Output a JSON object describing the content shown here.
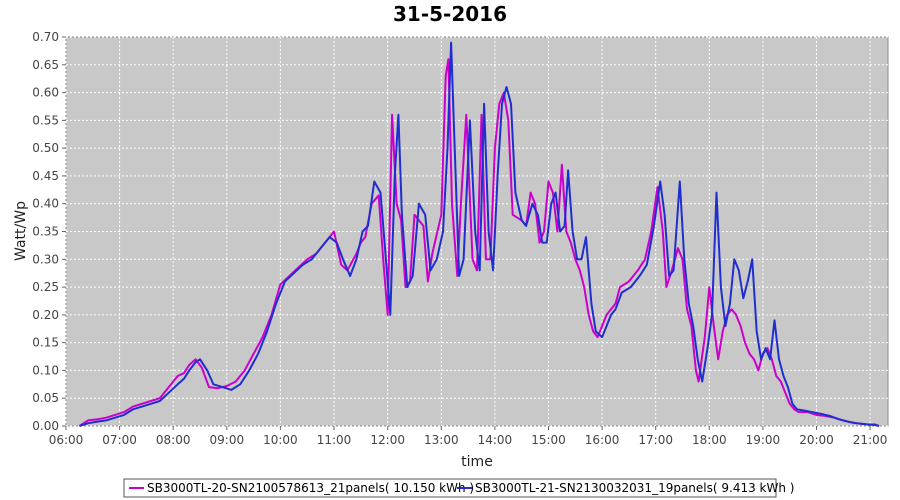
{
  "chart_data": {
    "type": "line",
    "title": "31-5-2016",
    "xlabel": "time",
    "ylabel": "Watt/Wp",
    "xlim": [
      "06:00",
      "21:20"
    ],
    "ylim": [
      0,
      0.7
    ],
    "x_ticks": [
      "06:00",
      "07:00",
      "08:00",
      "09:00",
      "10:00",
      "11:00",
      "12:00",
      "13:00",
      "14:00",
      "15:00",
      "16:00",
      "17:00",
      "18:00",
      "19:00",
      "20:00",
      "21:00"
    ],
    "y_ticks": [
      "0.00",
      "0.05",
      "0.10",
      "0.15",
      "0.20",
      "0.25",
      "0.30",
      "0.35",
      "0.40",
      "0.45",
      "0.50",
      "0.55",
      "0.60",
      "0.65",
      "0.70"
    ],
    "grid": true,
    "background": "#c8c8c8",
    "legend_position": "bottom",
    "series": [
      {
        "name": "SB3000TL-20-SN2100578613_21panels( 10.150 kWh )",
        "color": "#cc00cc",
        "points": [
          [
            "06:15",
            0.0
          ],
          [
            "06:25",
            0.01
          ],
          [
            "06:35",
            0.012
          ],
          [
            "06:45",
            0.015
          ],
          [
            "06:55",
            0.02
          ],
          [
            "07:05",
            0.025
          ],
          [
            "07:15",
            0.035
          ],
          [
            "07:25",
            0.04
          ],
          [
            "07:35",
            0.045
          ],
          [
            "07:45",
            0.05
          ],
          [
            "07:55",
            0.07
          ],
          [
            "08:05",
            0.09
          ],
          [
            "08:12",
            0.095
          ],
          [
            "08:18",
            0.11
          ],
          [
            "08:25",
            0.12
          ],
          [
            "08:32",
            0.105
          ],
          [
            "08:40",
            0.07
          ],
          [
            "08:50",
            0.068
          ],
          [
            "09:00",
            0.072
          ],
          [
            "09:10",
            0.08
          ],
          [
            "09:20",
            0.1
          ],
          [
            "09:30",
            0.13
          ],
          [
            "09:40",
            0.16
          ],
          [
            "09:50",
            0.2
          ],
          [
            "10:00",
            0.255
          ],
          [
            "10:10",
            0.27
          ],
          [
            "10:20",
            0.285
          ],
          [
            "10:30",
            0.3
          ],
          [
            "10:40",
            0.31
          ],
          [
            "10:50",
            0.33
          ],
          [
            "11:00",
            0.35
          ],
          [
            "11:08",
            0.29
          ],
          [
            "11:15",
            0.28
          ],
          [
            "11:25",
            0.31
          ],
          [
            "11:30",
            0.33
          ],
          [
            "11:35",
            0.34
          ],
          [
            "11:42",
            0.4
          ],
          [
            "11:50",
            0.415
          ],
          [
            "11:55",
            0.3
          ],
          [
            "12:00",
            0.2
          ],
          [
            "12:05",
            0.56
          ],
          [
            "12:10",
            0.4
          ],
          [
            "12:15",
            0.37
          ],
          [
            "12:20",
            0.25
          ],
          [
            "12:25",
            0.26
          ],
          [
            "12:30",
            0.38
          ],
          [
            "12:40",
            0.36
          ],
          [
            "12:45",
            0.26
          ],
          [
            "12:50",
            0.31
          ],
          [
            "13:00",
            0.38
          ],
          [
            "13:05",
            0.63
          ],
          [
            "13:08",
            0.66
          ],
          [
            "13:12",
            0.4
          ],
          [
            "13:18",
            0.27
          ],
          [
            "13:22",
            0.4
          ],
          [
            "13:28",
            0.56
          ],
          [
            "13:35",
            0.3
          ],
          [
            "13:40",
            0.28
          ],
          [
            "13:45",
            0.56
          ],
          [
            "13:50",
            0.3
          ],
          [
            "13:55",
            0.3
          ],
          [
            "14:00",
            0.5
          ],
          [
            "14:05",
            0.58
          ],
          [
            "14:10",
            0.6
          ],
          [
            "14:15",
            0.55
          ],
          [
            "14:20",
            0.38
          ],
          [
            "14:30",
            0.37
          ],
          [
            "14:35",
            0.36
          ],
          [
            "14:40",
            0.42
          ],
          [
            "14:45",
            0.4
          ],
          [
            "14:50",
            0.33
          ],
          [
            "14:55",
            0.35
          ],
          [
            "15:00",
            0.44
          ],
          [
            "15:05",
            0.42
          ],
          [
            "15:10",
            0.35
          ],
          [
            "15:15",
            0.47
          ],
          [
            "15:20",
            0.35
          ],
          [
            "15:25",
            0.33
          ],
          [
            "15:30",
            0.3
          ],
          [
            "15:35",
            0.28
          ],
          [
            "15:40",
            0.25
          ],
          [
            "15:45",
            0.2
          ],
          [
            "15:50",
            0.17
          ],
          [
            "15:55",
            0.16
          ],
          [
            "16:00",
            0.18
          ],
          [
            "16:05",
            0.2
          ],
          [
            "16:10",
            0.21
          ],
          [
            "16:15",
            0.22
          ],
          [
            "16:20",
            0.25
          ],
          [
            "16:30",
            0.26
          ],
          [
            "16:40",
            0.28
          ],
          [
            "16:48",
            0.3
          ],
          [
            "16:55",
            0.35
          ],
          [
            "17:02",
            0.43
          ],
          [
            "17:08",
            0.35
          ],
          [
            "17:12",
            0.25
          ],
          [
            "17:18",
            0.28
          ],
          [
            "17:25",
            0.32
          ],
          [
            "17:30",
            0.3
          ],
          [
            "17:35",
            0.21
          ],
          [
            "17:40",
            0.18
          ],
          [
            "17:45",
            0.1
          ],
          [
            "17:48",
            0.08
          ],
          [
            "17:55",
            0.16
          ],
          [
            "18:00",
            0.25
          ],
          [
            "18:05",
            0.18
          ],
          [
            "18:10",
            0.12
          ],
          [
            "18:15",
            0.17
          ],
          [
            "18:20",
            0.2
          ],
          [
            "18:25",
            0.21
          ],
          [
            "18:30",
            0.2
          ],
          [
            "18:35",
            0.18
          ],
          [
            "18:40",
            0.15
          ],
          [
            "18:45",
            0.13
          ],
          [
            "18:50",
            0.12
          ],
          [
            "18:55",
            0.1
          ],
          [
            "19:00",
            0.13
          ],
          [
            "19:05",
            0.14
          ],
          [
            "19:10",
            0.12
          ],
          [
            "19:15",
            0.09
          ],
          [
            "19:20",
            0.08
          ],
          [
            "19:25",
            0.06
          ],
          [
            "19:30",
            0.04
          ],
          [
            "19:35",
            0.03
          ],
          [
            "19:40",
            0.025
          ],
          [
            "19:50",
            0.025
          ],
          [
            "20:00",
            0.02
          ],
          [
            "20:10",
            0.018
          ],
          [
            "20:20",
            0.015
          ],
          [
            "20:30",
            0.01
          ],
          [
            "20:40",
            0.006
          ],
          [
            "20:50",
            0.004
          ],
          [
            "21:00",
            0.002
          ],
          [
            "21:05",
            0.003
          ],
          [
            "21:10",
            0.0
          ]
        ]
      },
      {
        "name": "SB3000TL-21-SN2130032031_19panels( 9.413 kWh )",
        "color": "#1f2fcf",
        "points": [
          [
            "06:15",
            0.0
          ],
          [
            "06:25",
            0.005
          ],
          [
            "06:35",
            0.008
          ],
          [
            "06:45",
            0.01
          ],
          [
            "06:55",
            0.015
          ],
          [
            "07:05",
            0.02
          ],
          [
            "07:15",
            0.03
          ],
          [
            "07:25",
            0.035
          ],
          [
            "07:35",
            0.04
          ],
          [
            "07:45",
            0.045
          ],
          [
            "07:55",
            0.06
          ],
          [
            "08:05",
            0.075
          ],
          [
            "08:12",
            0.085
          ],
          [
            "08:18",
            0.1
          ],
          [
            "08:25",
            0.115
          ],
          [
            "08:30",
            0.12
          ],
          [
            "08:38",
            0.1
          ],
          [
            "08:45",
            0.075
          ],
          [
            "08:55",
            0.07
          ],
          [
            "09:05",
            0.065
          ],
          [
            "09:15",
            0.075
          ],
          [
            "09:25",
            0.1
          ],
          [
            "09:35",
            0.13
          ],
          [
            "09:45",
            0.17
          ],
          [
            "09:55",
            0.22
          ],
          [
            "10:05",
            0.26
          ],
          [
            "10:15",
            0.275
          ],
          [
            "10:25",
            0.29
          ],
          [
            "10:35",
            0.3
          ],
          [
            "10:45",
            0.32
          ],
          [
            "10:55",
            0.34
          ],
          [
            "11:03",
            0.33
          ],
          [
            "11:10",
            0.3
          ],
          [
            "11:18",
            0.27
          ],
          [
            "11:25",
            0.3
          ],
          [
            "11:32",
            0.35
          ],
          [
            "11:38",
            0.36
          ],
          [
            "11:45",
            0.44
          ],
          [
            "11:52",
            0.42
          ],
          [
            "11:58",
            0.3
          ],
          [
            "12:03",
            0.2
          ],
          [
            "12:08",
            0.45
          ],
          [
            "12:12",
            0.56
          ],
          [
            "12:16",
            0.38
          ],
          [
            "12:22",
            0.25
          ],
          [
            "12:28",
            0.27
          ],
          [
            "12:35",
            0.4
          ],
          [
            "12:42",
            0.38
          ],
          [
            "12:48",
            0.28
          ],
          [
            "12:55",
            0.3
          ],
          [
            "13:02",
            0.35
          ],
          [
            "13:07",
            0.5
          ],
          [
            "13:11",
            0.69
          ],
          [
            "13:15",
            0.5
          ],
          [
            "13:20",
            0.27
          ],
          [
            "13:25",
            0.3
          ],
          [
            "13:32",
            0.55
          ],
          [
            "13:38",
            0.35
          ],
          [
            "13:43",
            0.28
          ],
          [
            "13:48",
            0.58
          ],
          [
            "13:53",
            0.35
          ],
          [
            "13:58",
            0.28
          ],
          [
            "14:03",
            0.45
          ],
          [
            "14:08",
            0.58
          ],
          [
            "14:13",
            0.61
          ],
          [
            "14:18",
            0.58
          ],
          [
            "14:23",
            0.42
          ],
          [
            "14:30",
            0.37
          ],
          [
            "14:35",
            0.36
          ],
          [
            "14:42",
            0.4
          ],
          [
            "14:48",
            0.38
          ],
          [
            "14:53",
            0.33
          ],
          [
            "14:58",
            0.33
          ],
          [
            "15:03",
            0.4
          ],
          [
            "15:08",
            0.42
          ],
          [
            "15:13",
            0.35
          ],
          [
            "15:18",
            0.36
          ],
          [
            "15:22",
            0.46
          ],
          [
            "15:27",
            0.35
          ],
          [
            "15:32",
            0.3
          ],
          [
            "15:37",
            0.3
          ],
          [
            "15:42",
            0.34
          ],
          [
            "15:48",
            0.22
          ],
          [
            "15:53",
            0.17
          ],
          [
            "16:00",
            0.16
          ],
          [
            "16:05",
            0.18
          ],
          [
            "16:10",
            0.2
          ],
          [
            "16:15",
            0.21
          ],
          [
            "16:22",
            0.24
          ],
          [
            "16:32",
            0.25
          ],
          [
            "16:42",
            0.27
          ],
          [
            "16:50",
            0.29
          ],
          [
            "16:58",
            0.36
          ],
          [
            "17:05",
            0.44
          ],
          [
            "17:10",
            0.38
          ],
          [
            "17:15",
            0.27
          ],
          [
            "17:20",
            0.28
          ],
          [
            "17:27",
            0.44
          ],
          [
            "17:32",
            0.3
          ],
          [
            "17:37",
            0.22
          ],
          [
            "17:42",
            0.18
          ],
          [
            "17:47",
            0.12
          ],
          [
            "17:52",
            0.08
          ],
          [
            "17:58",
            0.14
          ],
          [
            "18:03",
            0.2
          ],
          [
            "18:08",
            0.42
          ],
          [
            "18:13",
            0.25
          ],
          [
            "18:18",
            0.18
          ],
          [
            "18:23",
            0.22
          ],
          [
            "18:28",
            0.3
          ],
          [
            "18:33",
            0.28
          ],
          [
            "18:38",
            0.23
          ],
          [
            "18:43",
            0.26
          ],
          [
            "18:48",
            0.3
          ],
          [
            "18:53",
            0.17
          ],
          [
            "18:58",
            0.12
          ],
          [
            "19:03",
            0.14
          ],
          [
            "19:08",
            0.12
          ],
          [
            "19:13",
            0.19
          ],
          [
            "19:18",
            0.12
          ],
          [
            "19:23",
            0.09
          ],
          [
            "19:28",
            0.07
          ],
          [
            "19:33",
            0.04
          ],
          [
            "19:38",
            0.03
          ],
          [
            "19:45",
            0.028
          ],
          [
            "19:55",
            0.025
          ],
          [
            "20:05",
            0.022
          ],
          [
            "20:15",
            0.018
          ],
          [
            "20:25",
            0.012
          ],
          [
            "20:35",
            0.008
          ],
          [
            "20:45",
            0.005
          ],
          [
            "20:55",
            0.003
          ],
          [
            "21:05",
            0.002
          ],
          [
            "21:10",
            0.0
          ]
        ]
      }
    ]
  }
}
